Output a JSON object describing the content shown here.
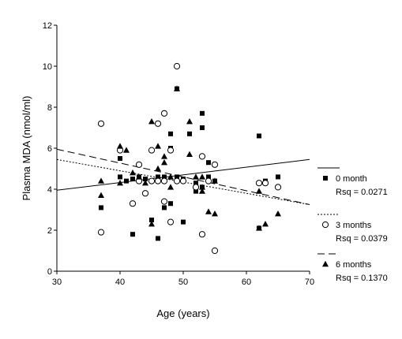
{
  "chart_data": {
    "type": "scatter",
    "xlabel": "Age (years)",
    "ylabel": "Plasma MDA (nmol/ml)",
    "xlim": [
      30,
      70
    ],
    "ylim": [
      0,
      12
    ],
    "xticks": [
      30,
      40,
      50,
      60,
      70
    ],
    "yticks": [
      0,
      2,
      4,
      6,
      8,
      10,
      12
    ],
    "grid": false,
    "legend_position": "right",
    "series": [
      {
        "name": "0 month",
        "marker": "square",
        "rsq": "Rsq = 0.0271",
        "fit_line": {
          "style": "solid",
          "x": [
            30,
            70
          ],
          "y": [
            3.95,
            5.45
          ]
        },
        "points": [
          [
            37,
            3.1
          ],
          [
            40,
            4.6
          ],
          [
            40,
            5.5
          ],
          [
            41,
            4.4
          ],
          [
            42,
            1.8
          ],
          [
            42,
            4.5
          ],
          [
            43,
            4.6
          ],
          [
            44,
            4.5
          ],
          [
            45,
            4.4
          ],
          [
            45,
            2.5
          ],
          [
            46,
            4.6
          ],
          [
            46,
            1.6
          ],
          [
            47,
            3.1
          ],
          [
            47,
            4.6
          ],
          [
            48,
            6.0
          ],
          [
            48,
            3.3
          ],
          [
            48,
            6.7
          ],
          [
            49,
            8.9
          ],
          [
            49,
            4.6
          ],
          [
            50,
            2.4
          ],
          [
            50,
            4.5
          ],
          [
            51,
            6.7
          ],
          [
            52,
            3.9
          ],
          [
            52,
            4.3
          ],
          [
            53,
            7.7
          ],
          [
            53,
            7.0
          ],
          [
            53,
            4.1
          ],
          [
            54,
            5.3
          ],
          [
            54,
            4.6
          ],
          [
            55,
            4.4
          ],
          [
            62,
            6.6
          ],
          [
            62,
            2.1
          ],
          [
            63,
            4.4
          ],
          [
            65,
            4.6
          ]
        ]
      },
      {
        "name": "3 months",
        "marker": "circle",
        "rsq": "Rsq = 0.0379",
        "fit_line": {
          "style": "dotted",
          "x": [
            30,
            70
          ],
          "y": [
            5.45,
            3.25
          ]
        },
        "points": [
          [
            37,
            7.2
          ],
          [
            37,
            1.9
          ],
          [
            40,
            5.9
          ],
          [
            42,
            3.3
          ],
          [
            43,
            5.2
          ],
          [
            43,
            4.4
          ],
          [
            44,
            3.8
          ],
          [
            45,
            5.9
          ],
          [
            45,
            4.4
          ],
          [
            46,
            7.2
          ],
          [
            46,
            4.4
          ],
          [
            47,
            7.7
          ],
          [
            47,
            3.4
          ],
          [
            47,
            4.4
          ],
          [
            48,
            2.4
          ],
          [
            48,
            5.9
          ],
          [
            49,
            10.0
          ],
          [
            49,
            4.4
          ],
          [
            50,
            4.4
          ],
          [
            52,
            4.1
          ],
          [
            53,
            5.6
          ],
          [
            53,
            1.8
          ],
          [
            54,
            4.4
          ],
          [
            55,
            5.2
          ],
          [
            55,
            1.0
          ],
          [
            62,
            4.3
          ],
          [
            63,
            4.3
          ],
          [
            65,
            4.1
          ]
        ]
      },
      {
        "name": "6 months",
        "marker": "triangle",
        "rsq": "Rsq = 0.1370",
        "fit_line": {
          "style": "dashed",
          "x": [
            30,
            70
          ],
          "y": [
            5.95,
            3.25
          ]
        },
        "points": [
          [
            37,
            3.7
          ],
          [
            37,
            4.4
          ],
          [
            40,
            6.1
          ],
          [
            40,
            4.3
          ],
          [
            41,
            5.9
          ],
          [
            42,
            4.8
          ],
          [
            43,
            4.6
          ],
          [
            44,
            4.3
          ],
          [
            45,
            7.3
          ],
          [
            45,
            2.3
          ],
          [
            46,
            6.1
          ],
          [
            46,
            5.0
          ],
          [
            47,
            5.3
          ],
          [
            47,
            5.6
          ],
          [
            48,
            4.1
          ],
          [
            48,
            4.6
          ],
          [
            49,
            8.9
          ],
          [
            51,
            7.3
          ],
          [
            51,
            5.7
          ],
          [
            52,
            4.6
          ],
          [
            53,
            4.6
          ],
          [
            53,
            4.1
          ],
          [
            53,
            3.9
          ],
          [
            54,
            2.9
          ],
          [
            55,
            2.8
          ],
          [
            55,
            4.4
          ],
          [
            62,
            3.9
          ],
          [
            62,
            2.1
          ],
          [
            63,
            2.3
          ],
          [
            65,
            2.8
          ]
        ]
      }
    ]
  }
}
